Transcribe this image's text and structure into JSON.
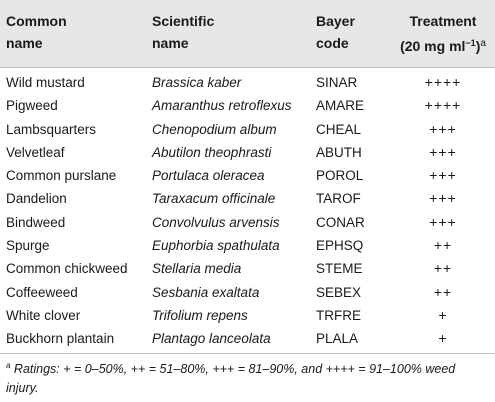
{
  "header": {
    "col1": [
      "Common",
      "name"
    ],
    "col2": [
      "Scientific",
      "name"
    ],
    "col3": [
      "Bayer",
      "code"
    ],
    "col4_line1": "Treatment",
    "col4_line2": "(20 mg ml",
    "col4_exp": "−1",
    "col4_close": ")",
    "col4_note": "a"
  },
  "rows": [
    {
      "common": "Wild mustard",
      "scientific": "Brassica kaber",
      "code": "SINAR",
      "treatment": "++++"
    },
    {
      "common": "Pigweed",
      "scientific": "Amaranthus retroflexus",
      "code": "AMARE",
      "treatment": "++++"
    },
    {
      "common": "Lambsquarters",
      "scientific": "Chenopodium album",
      "code": "CHEAL",
      "treatment": "+++"
    },
    {
      "common": "Velvetleaf",
      "scientific": "Abutilon theophrasti",
      "code": "ABUTH",
      "treatment": "+++"
    },
    {
      "common": "Common purslane",
      "scientific": "Portulaca oleracea",
      "code": "POROL",
      "treatment": "+++"
    },
    {
      "common": "Dandelion",
      "scientific": "Taraxacum officinale",
      "code": "TAROF",
      "treatment": "+++"
    },
    {
      "common": "Bindweed",
      "scientific": "Convolvulus arvensis",
      "code": "CONAR",
      "treatment": "+++"
    },
    {
      "common": "Spurge",
      "scientific": "Euphorbia spathulata",
      "code": "EPHSQ",
      "treatment": "++"
    },
    {
      "common": "Common chickweed",
      "scientific": "Stellaria media",
      "code": "STEME",
      "treatment": "++"
    },
    {
      "common": "Coffeeweed",
      "scientific": "Sesbania exaltata",
      "code": "SEBEX",
      "treatment": "++"
    },
    {
      "common": "White clover",
      "scientific": "Trifolium repens",
      "code": "TRFRE",
      "treatment": "+"
    },
    {
      "common": "Buckhorn plantain",
      "scientific": "Plantago lanceolata",
      "code": "PLALA",
      "treatment": "+"
    }
  ],
  "footnote": {
    "marker": "a",
    "line1": " Ratings: + = 0–50%, ++ = 51–80%, +++ = 81–90%, and ++++ = 91–100% weed",
    "line2": "injury."
  }
}
